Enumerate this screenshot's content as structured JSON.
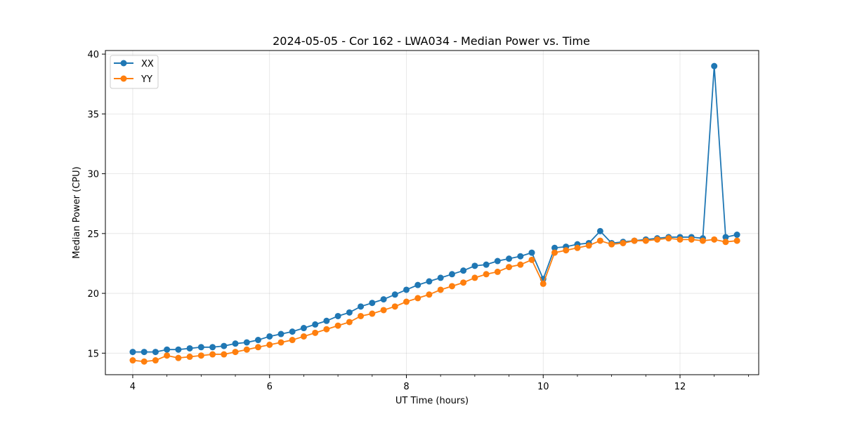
{
  "chart_data": {
    "type": "line",
    "title": "2024-05-05 - Cor 162 - LWA034 - Median Power vs. Time",
    "xlabel": "UT Time (hours)",
    "ylabel": "Median Power (CPU)",
    "xlim": [
      3.6,
      13.15
    ],
    "ylim": [
      13.2,
      40.3
    ],
    "xticks": [
      4,
      6,
      8,
      10,
      12
    ],
    "xminor_step": 0.5,
    "yticks": [
      15,
      20,
      25,
      30,
      35,
      40
    ],
    "grid": true,
    "legend_position": "top-left",
    "x": [
      4.0,
      4.167,
      4.333,
      4.5,
      4.667,
      4.833,
      5.0,
      5.167,
      5.333,
      5.5,
      5.667,
      5.833,
      6.0,
      6.167,
      6.333,
      6.5,
      6.667,
      6.833,
      7.0,
      7.167,
      7.333,
      7.5,
      7.667,
      7.833,
      8.0,
      8.167,
      8.333,
      8.5,
      8.667,
      8.833,
      9.0,
      9.167,
      9.333,
      9.5,
      9.667,
      9.833,
      10.0,
      10.167,
      10.333,
      10.5,
      10.667,
      10.833,
      11.0,
      11.167,
      11.333,
      11.5,
      11.667,
      11.833,
      12.0,
      12.167,
      12.333,
      12.5,
      12.667,
      12.833
    ],
    "series": [
      {
        "name": "XX",
        "color": "#1f77b4",
        "values": [
          15.1,
          15.1,
          15.1,
          15.3,
          15.3,
          15.4,
          15.5,
          15.5,
          15.6,
          15.8,
          15.9,
          16.1,
          16.4,
          16.6,
          16.8,
          17.1,
          17.4,
          17.7,
          18.1,
          18.4,
          18.9,
          19.2,
          19.5,
          19.9,
          20.3,
          20.7,
          21.0,
          21.3,
          21.6,
          21.9,
          22.3,
          22.4,
          22.7,
          22.9,
          23.1,
          23.4,
          21.2,
          23.8,
          23.9,
          24.1,
          24.2,
          25.2,
          24.2,
          24.3,
          24.4,
          24.5,
          24.6,
          24.7,
          24.7,
          24.7,
          24.6,
          39.0,
          24.7,
          24.9
        ]
      },
      {
        "name": "YY",
        "color": "#ff7f0e",
        "values": [
          14.4,
          14.3,
          14.4,
          14.8,
          14.6,
          14.7,
          14.8,
          14.9,
          14.9,
          15.1,
          15.3,
          15.5,
          15.7,
          15.9,
          16.1,
          16.4,
          16.7,
          17.0,
          17.3,
          17.6,
          18.1,
          18.3,
          18.6,
          18.9,
          19.3,
          19.6,
          19.9,
          20.3,
          20.6,
          20.9,
          21.3,
          21.6,
          21.8,
          22.2,
          22.4,
          22.8,
          20.8,
          23.4,
          23.6,
          23.8,
          24.0,
          24.4,
          24.1,
          24.2,
          24.4,
          24.4,
          24.5,
          24.6,
          24.5,
          24.5,
          24.4,
          24.5,
          24.3,
          24.4
        ]
      }
    ]
  }
}
